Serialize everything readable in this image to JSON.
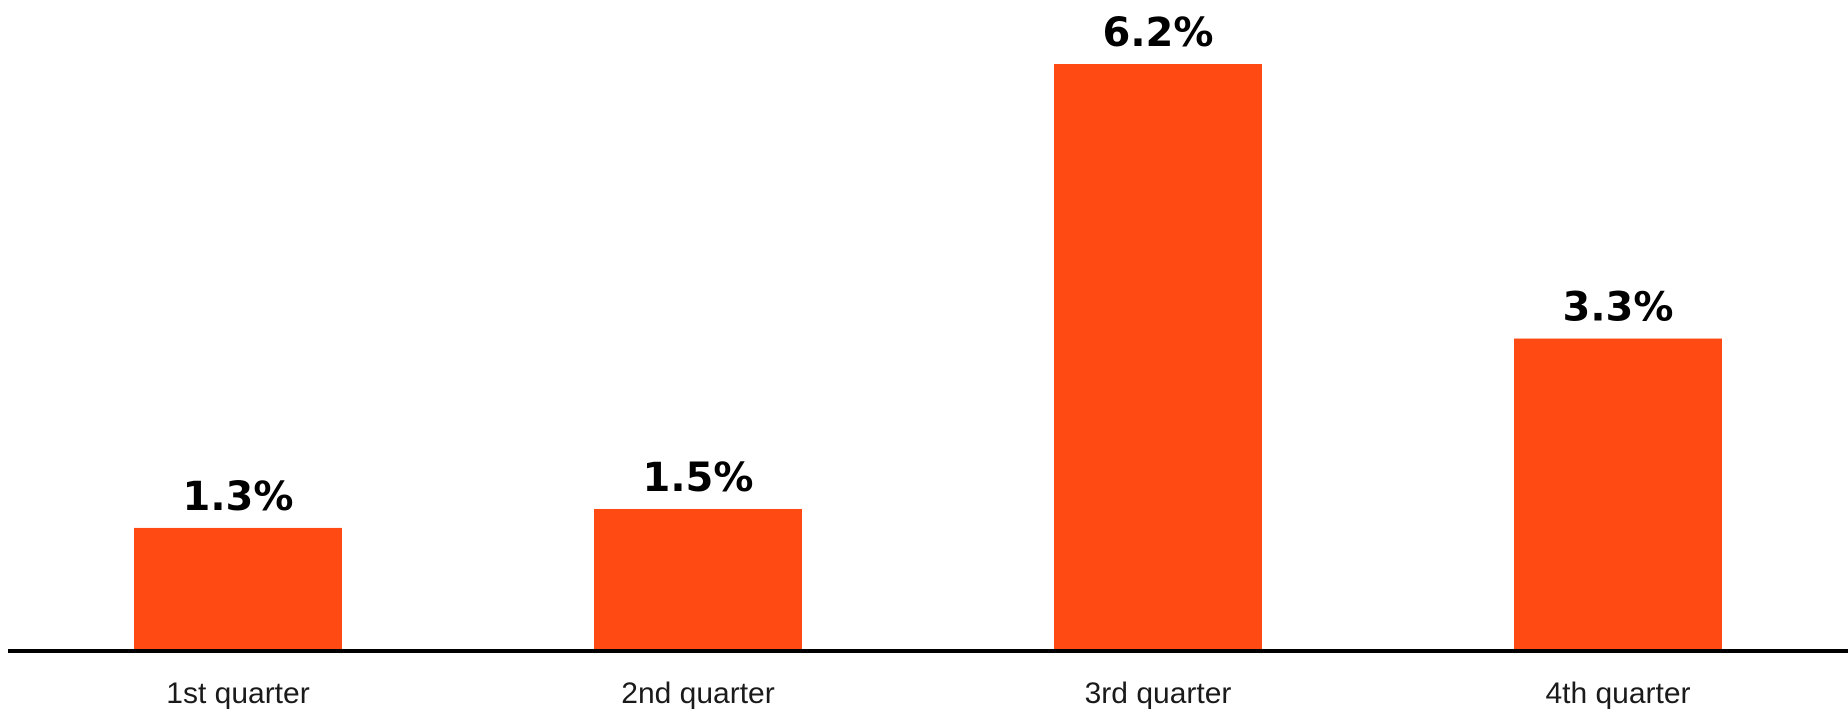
{
  "chart_data": {
    "type": "bar",
    "categories": [
      "1st quarter",
      "2nd quarter",
      "3rd quarter",
      "4th quarter"
    ],
    "values": [
      1.3,
      1.5,
      6.2,
      3.3
    ],
    "value_labels": [
      "1.3%",
      "1.5%",
      "6.2%",
      "3.3%"
    ],
    "title": "",
    "xlabel": "",
    "ylabel": "",
    "ylim": [
      0,
      6.2
    ],
    "grid": false,
    "legend": "none",
    "colors": {
      "bar": "#FF4A14",
      "axis": "#000000",
      "label": "#000000"
    }
  }
}
